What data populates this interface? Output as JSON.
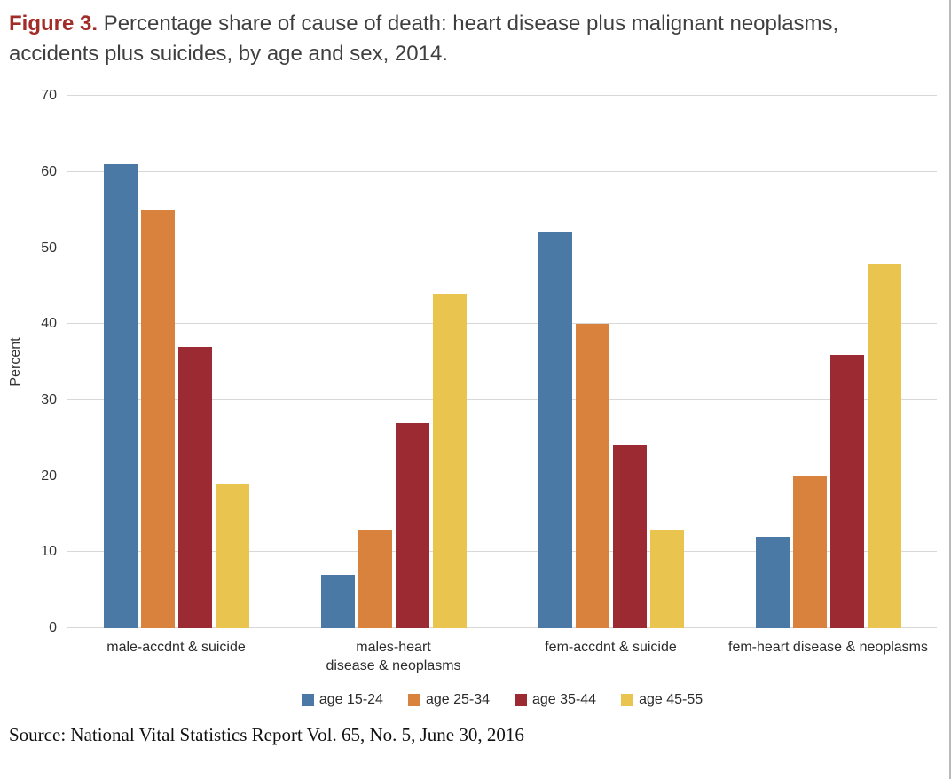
{
  "figure": {
    "label": "Figure 3.",
    "title_rest": " Percentage share of cause of death: heart disease plus malignant neoplasms, accidents plus suicides, by age and sex, 2014."
  },
  "source_note": "Source: National Vital Statistics Report Vol. 65, No. 5, June 30, 2016",
  "chart_data": {
    "type": "bar",
    "title": "Figure 3. Percentage share of cause of death: heart disease plus malignant neoplasms, accidents plus suicides, by age and sex, 2014.",
    "xlabel": "",
    "ylabel": "Percent",
    "ylim": [
      0,
      70
    ],
    "ytick_step": 10,
    "grid": true,
    "legend_position": "bottom",
    "categories": [
      "male-accdnt & suicide",
      "males-heart\ndisease & neoplasms",
      "fem-accdnt & suicide",
      "fem-heart disease & neoplasms"
    ],
    "series": [
      {
        "name": "age 15-24",
        "color": "#4a79a5",
        "values": [
          61,
          7,
          52,
          12
        ]
      },
      {
        "name": "age 25-34",
        "color": "#d8823e",
        "values": [
          55,
          13,
          40,
          20
        ]
      },
      {
        "name": "age 35-44",
        "color": "#9c2a33",
        "values": [
          37,
          27,
          24,
          36
        ]
      },
      {
        "name": "age 45-55",
        "color": "#e9c44e",
        "values": [
          19,
          44,
          13,
          48
        ]
      }
    ]
  }
}
